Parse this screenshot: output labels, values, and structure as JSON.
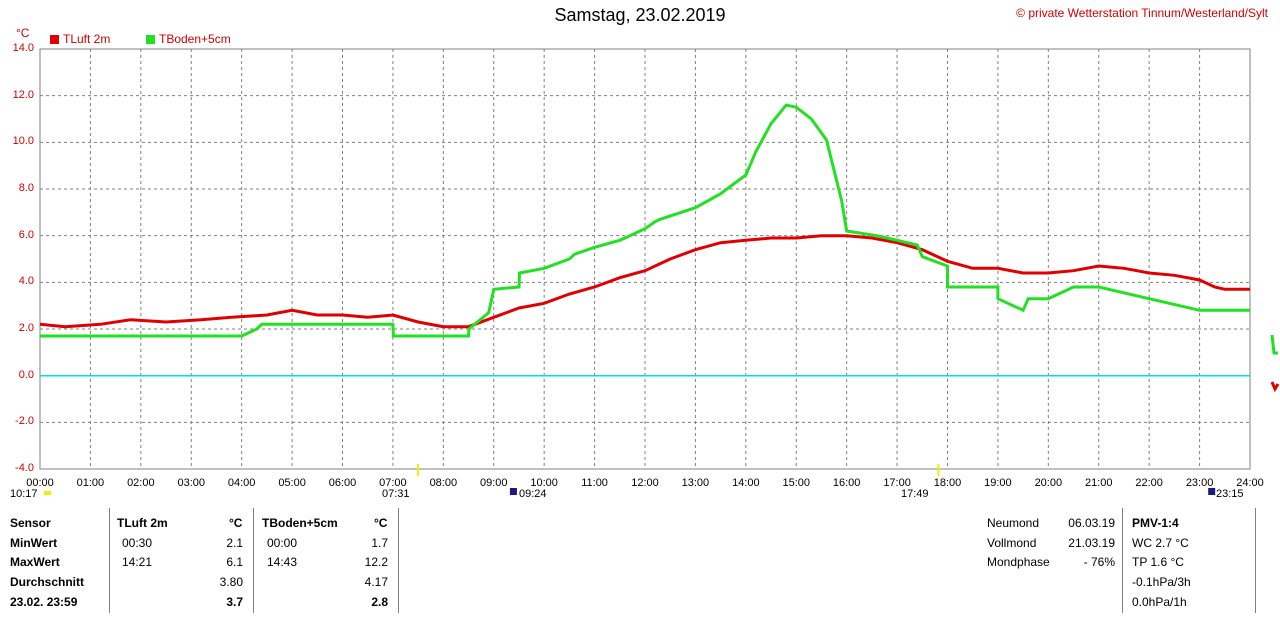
{
  "header": {
    "title": "Samstag, 23.02.2019",
    "copyright": "© private Wetterstation Tinnum/Westerland/Sylt",
    "unit": "°C"
  },
  "colors": {
    "tluft": "#e00000",
    "tboden": "#22e022",
    "zero": "#00e0e0",
    "grid": "#808080",
    "axis_text": "#d00000"
  },
  "legend": [
    {
      "label": "TLuft 2m",
      "color": "#e00000"
    },
    {
      "label": "TBoden+5cm",
      "color": "#22e022"
    }
  ],
  "sun_moon": {
    "left_start": "10:17",
    "sunrise": "07:31",
    "moonset": "09:24",
    "sunset": "17:49",
    "moonrise": "23:15"
  },
  "chart_data": {
    "type": "line",
    "title": "Samstag, 23.02.2019",
    "ylabel": "°C",
    "ylim": [
      -4,
      14
    ],
    "xlim": [
      0,
      24
    ],
    "y_ticks": [
      "14.0",
      "12.0",
      "10.0",
      "8.0",
      "6.0",
      "4.0",
      "2.0",
      "0.0",
      "-2.0",
      "-4.0"
    ],
    "x_ticks": [
      "00:00",
      "01:00",
      "02:00",
      "03:00",
      "04:00",
      "05:00",
      "06:00",
      "07:00",
      "08:00",
      "09:00",
      "10:00",
      "11:00",
      "12:00",
      "13:00",
      "14:00",
      "15:00",
      "16:00",
      "17:00",
      "18:00",
      "19:00",
      "20:00",
      "21:00",
      "22:00",
      "23:00",
      "24:00"
    ],
    "grid": true,
    "legend_position": "top-left",
    "series": [
      {
        "name": "TLuft 2m",
        "x": [
          0,
          0.5,
          1.2,
          1.8,
          2.5,
          3.2,
          3.8,
          4.5,
          5,
          5.5,
          6,
          6.5,
          7,
          7.5,
          8,
          8.5,
          9,
          9.5,
          10,
          10.5,
          11,
          11.5,
          12,
          12.5,
          13,
          13.5,
          14,
          14.5,
          15,
          15.5,
          16,
          16.5,
          17,
          17.5,
          18,
          18.5,
          19,
          19.5,
          20,
          20.5,
          21,
          21.5,
          22,
          22.5,
          23,
          23.3,
          23.5,
          24
        ],
        "values": [
          2.2,
          2.1,
          2.2,
          2.4,
          2.3,
          2.4,
          2.5,
          2.6,
          2.8,
          2.6,
          2.6,
          2.5,
          2.6,
          2.3,
          2.1,
          2.1,
          2.5,
          2.9,
          3.1,
          3.5,
          3.8,
          4.2,
          4.5,
          5.0,
          5.4,
          5.7,
          5.8,
          5.9,
          5.9,
          6.0,
          6.0,
          5.9,
          5.7,
          5.4,
          4.9,
          4.6,
          4.6,
          4.4,
          4.4,
          4.5,
          4.7,
          4.6,
          4.4,
          4.3,
          4.1,
          3.8,
          3.7,
          3.7
        ]
      },
      {
        "name": "TBoden+5cm",
        "x": [
          0,
          4,
          4.3,
          4.4,
          7,
          7.01,
          8.5,
          8.51,
          8.9,
          9,
          9.5,
          9.51,
          10,
          10.5,
          10.6,
          11,
          11.5,
          11.7,
          12,
          12.2,
          12.3,
          13,
          13.5,
          14,
          14.2,
          14.5,
          14.8,
          15,
          15.3,
          15.6,
          15.9,
          16,
          16.6,
          17,
          17.4,
          17.5,
          18,
          18,
          19,
          19,
          19.5,
          19.6,
          20,
          20.5,
          21,
          22,
          23,
          23.5,
          24
        ],
        "values": [
          1.7,
          1.7,
          2.0,
          2.2,
          2.2,
          1.7,
          1.7,
          2.0,
          2.7,
          3.7,
          3.8,
          4.4,
          4.6,
          5.0,
          5.2,
          5.5,
          5.8,
          6.0,
          6.3,
          6.6,
          6.7,
          7.2,
          7.8,
          8.6,
          9.6,
          10.8,
          11.6,
          11.5,
          11.0,
          10.1,
          7.5,
          6.2,
          6.0,
          5.8,
          5.6,
          5.1,
          4.7,
          3.8,
          3.8,
          3.3,
          2.8,
          3.3,
          3.3,
          3.8,
          3.8,
          3.3,
          2.8,
          2.8,
          2.8
        ]
      },
      {
        "name": "",
        "x": [
          0,
          24
        ],
        "values": [
          0,
          0
        ]
      }
    ]
  },
  "table": {
    "headers": {
      "sensor": "Sensor",
      "tluft": "TLuft 2m",
      "tluft_unit": "°C",
      "tboden": "TBoden+5cm",
      "tboden_unit": "°C"
    },
    "rows": [
      {
        "label": "MinWert",
        "t1_time": "00:30",
        "t1_val": "2.1",
        "t2_time": "00:00",
        "t2_val": "1.7"
      },
      {
        "label": "MaxWert",
        "t1_time": "14:21",
        "t1_val": "6.1",
        "t2_time": "14:43",
        "t2_val": "12.2"
      },
      {
        "label": "Durchschnitt",
        "t1_time": "",
        "t1_val": "3.80",
        "t2_time": "",
        "t2_val": "4.17"
      },
      {
        "label": "23.02. 23:59",
        "t1_time": "",
        "t1_val": "3.7",
        "t2_time": "",
        "t2_val": "2.8"
      }
    ]
  },
  "moon": [
    {
      "label": "Neumond",
      "value": "06.03.19"
    },
    {
      "label": "Vollmond",
      "value": "21.03.19"
    },
    {
      "label": "Mondphase",
      "value": "- 76%"
    }
  ],
  "pmv": {
    "title": "PMV-1:4",
    "lines": [
      "WC 2.7 °C",
      "TP 1.6 °C",
      "-0.1hPa/3h",
      "0.0hPa/1h"
    ]
  }
}
